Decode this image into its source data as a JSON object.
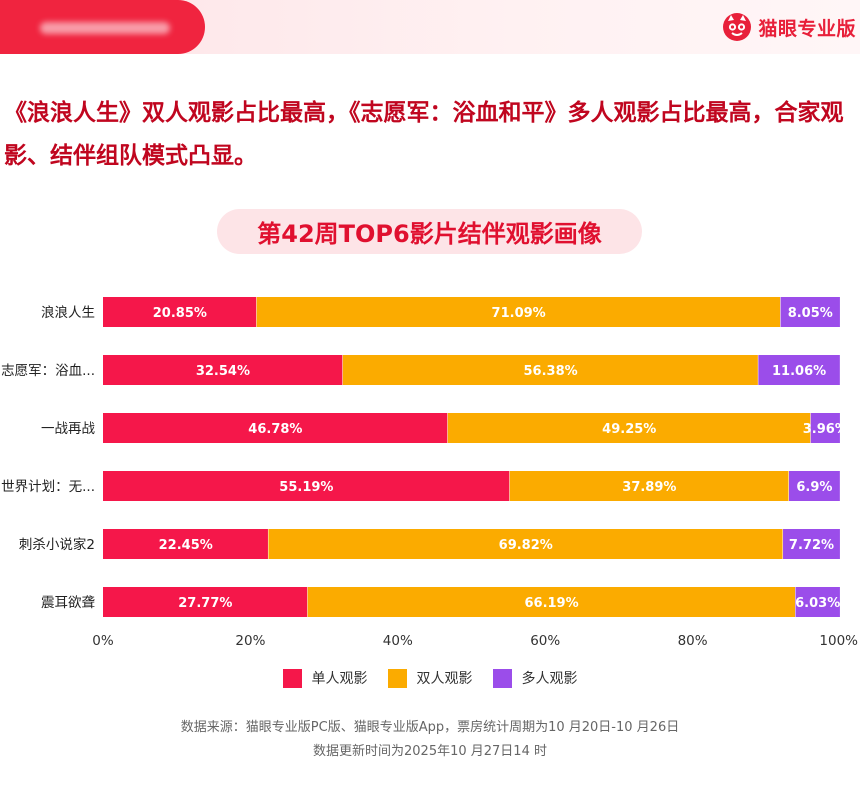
{
  "header": {
    "brand_name": "猫眼专业版"
  },
  "headline": "《浪浪人生》双人观影占比最高，《志愿军：浴血和平》多人观影占比最高，合家观影、结伴组队模式凸显。",
  "chart_data": {
    "type": "bar",
    "orientation": "horizontal",
    "stacked": true,
    "title": "第42周TOP6影片结伴观影画像",
    "categories": [
      "浪浪人生",
      "志愿军：浴血...",
      "一战再战",
      "世界计划：无...",
      "刺杀小说家2",
      "震耳欲聋"
    ],
    "series": [
      {
        "name": "单人观影",
        "color": "#f5174a",
        "values": [
          20.85,
          32.54,
          46.78,
          55.19,
          22.45,
          27.77
        ],
        "labels": [
          "20.85%",
          "32.54%",
          "46.78%",
          "55.19%",
          "22.45%",
          "27.77%"
        ]
      },
      {
        "name": "双人观影",
        "color": "#fbab00",
        "values": [
          71.09,
          56.38,
          49.25,
          37.89,
          69.82,
          66.19
        ],
        "labels": [
          "71.09%",
          "56.38%",
          "49.25%",
          "37.89%",
          "69.82%",
          "66.19%"
        ]
      },
      {
        "name": "多人观影",
        "color": "#9b4dea",
        "values": [
          8.05,
          11.06,
          3.96,
          6.9,
          7.72,
          6.03
        ],
        "labels": [
          "8.05%",
          "11.06%",
          "3.96%",
          "6.9%",
          "7.72%",
          "6.03%"
        ]
      }
    ],
    "xlim": [
      0,
      100
    ],
    "xticks": [
      0,
      20,
      40,
      60,
      80,
      100
    ],
    "xtick_labels": [
      "0%",
      "20%",
      "40%",
      "60%",
      "80%",
      "100%"
    ],
    "xlabel": "",
    "ylabel": "",
    "legend_position": "bottom",
    "grid": false
  },
  "source_note": "数据来源：猫眼专业版PC版、猫眼专业版App，票房统计周期为10 月20日-10 月26日",
  "update_note": "数据更新时间为2025年10 月27日14 时"
}
